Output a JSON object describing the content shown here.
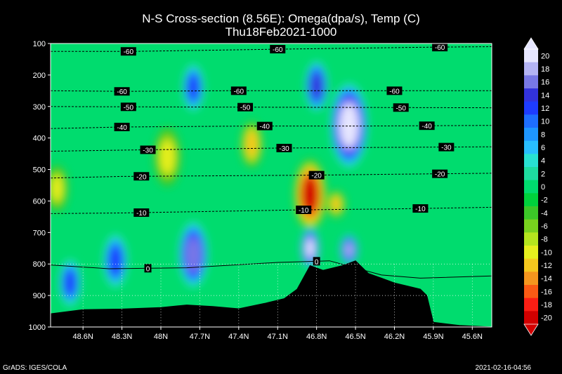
{
  "title": "N-S Cross-section (8.56E): Omega(dpa/s), Temp (C)",
  "subtitle": "Thu18Feb2021-1000",
  "footer_left": "GrADS: IGES/COLA",
  "footer_right": "2021-02-16-04:56",
  "chart_data": {
    "type": "heatmap",
    "title": "N-S Cross-section (8.56E): Omega(dpa/s), Temp (C)",
    "subtitle": "Thu18Feb2021-1000",
    "y_axis": {
      "scale": "pressure",
      "reversed": true,
      "ylim": [
        100,
        1000
      ],
      "ticks": [
        "100",
        "200",
        "300",
        "400",
        "500",
        "600",
        "700",
        "800",
        "900",
        "1000"
      ]
    },
    "x_axis": {
      "xlim": [
        48.85,
        45.45
      ],
      "ticks": [
        "48.6N",
        "48.3N",
        "48N",
        "47.7N",
        "47.4N",
        "47.1N",
        "46.8N",
        "46.5N",
        "46.2N",
        "45.9N",
        "45.6N"
      ]
    },
    "colorbar": {
      "levels": [
        "20",
        "18",
        "16",
        "14",
        "12",
        "10",
        "8",
        "6",
        "4",
        "2",
        "0",
        "-2",
        "-4",
        "-6",
        "-8",
        "-10",
        "-12",
        "-14",
        "-16",
        "-18",
        "-20"
      ],
      "colors": [
        "#e6e6ff",
        "#b4b4f5",
        "#7878e6",
        "#3232dc",
        "#1e3cff",
        "#1e6eff",
        "#1e96ff",
        "#28beff",
        "#28e1d2",
        "#1edca0",
        "#00dc6e",
        "#00d23c",
        "#3cc828",
        "#78d21e",
        "#b4e61e",
        "#e6ef1e",
        "#f5c81e",
        "#f5961e",
        "#fa5a14",
        "#fa1e14",
        "#d20000"
      ]
    },
    "omega_features": [
      {
        "lat": 46.55,
        "p_top": 240,
        "p_bottom": 480,
        "omega": 20
      },
      {
        "lat": 46.8,
        "p_top": 170,
        "p_bottom": 300,
        "omega": 14
      },
      {
        "lat": 47.75,
        "p_top": 180,
        "p_bottom": 300,
        "omega": 12
      },
      {
        "lat": 47.75,
        "p_top": 680,
        "p_bottom": 860,
        "omega": 16
      },
      {
        "lat": 48.35,
        "p_top": 720,
        "p_bottom": 860,
        "omega": 12
      },
      {
        "lat": 48.7,
        "p_top": 800,
        "p_bottom": 920,
        "omega": 12
      },
      {
        "lat": 46.85,
        "p_top": 480,
        "p_bottom": 680,
        "omega": -20
      },
      {
        "lat": 46.85,
        "p_top": 700,
        "p_bottom": 800,
        "omega": 20
      },
      {
        "lat": 46.55,
        "p_top": 720,
        "p_bottom": 790,
        "omega": 18
      },
      {
        "lat": 47.3,
        "p_top": 360,
        "p_bottom": 480,
        "omega": -12
      },
      {
        "lat": 47.95,
        "p_top": 380,
        "p_bottom": 540,
        "omega": -10
      },
      {
        "lat": 48.8,
        "p_top": 500,
        "p_bottom": 620,
        "omega": -10
      },
      {
        "lat": 46.65,
        "p_top": 580,
        "p_bottom": 640,
        "omega": -12
      }
    ],
    "temperature_isotherms": [
      {
        "label": "-60",
        "points": [
          [
            48.85,
            125
          ],
          [
            48.2,
            125
          ],
          [
            47.1,
            118
          ],
          [
            46.0,
            112
          ],
          [
            45.45,
            110
          ]
        ],
        "label_lats": [
          48.25,
          47.1,
          45.85
        ]
      },
      {
        "label": "-60",
        "points": [
          [
            48.85,
            250
          ],
          [
            48.3,
            252
          ],
          [
            47.5,
            250
          ],
          [
            46.6,
            250
          ],
          [
            45.45,
            250
          ]
        ],
        "label_lats": [
          48.3,
          47.4,
          46.2
        ]
      },
      {
        "label": "-50",
        "points": [
          [
            48.85,
            300
          ],
          [
            48.3,
            301
          ],
          [
            47.4,
            302
          ],
          [
            46.5,
            303
          ],
          [
            45.45,
            304
          ]
        ],
        "label_lats": [
          48.25,
          47.35,
          46.15
        ]
      },
      {
        "label": "-40",
        "points": [
          [
            48.85,
            370
          ],
          [
            48.3,
            365
          ],
          [
            47.3,
            362
          ],
          [
            46.4,
            362
          ],
          [
            45.45,
            360
          ]
        ],
        "label_lats": [
          48.3,
          47.2,
          45.95
        ]
      },
      {
        "label": "-30",
        "points": [
          [
            48.85,
            442
          ],
          [
            48.2,
            438
          ],
          [
            47.1,
            432
          ],
          [
            46.3,
            430
          ],
          [
            45.45,
            428
          ]
        ],
        "label_lats": [
          48.1,
          47.05,
          45.8
        ]
      },
      {
        "label": "-20",
        "points": [
          [
            48.85,
            527
          ],
          [
            48.3,
            522
          ],
          [
            46.8,
            518
          ],
          [
            46.2,
            515
          ],
          [
            45.45,
            512
          ]
        ],
        "label_lats": [
          48.15,
          46.8,
          45.85
        ]
      },
      {
        "label": "-10",
        "points": [
          [
            48.85,
            640
          ],
          [
            48.3,
            638
          ],
          [
            46.9,
            628
          ],
          [
            46.2,
            625
          ],
          [
            45.45,
            620
          ]
        ],
        "label_lats": [
          48.15,
          46.9,
          46.0
        ]
      },
      {
        "label": "0",
        "points": [
          [
            48.85,
            803
          ],
          [
            48.4,
            815
          ],
          [
            47.8,
            812
          ],
          [
            47.1,
            795
          ],
          [
            46.7,
            790
          ],
          [
            46.3,
            835
          ],
          [
            46.0,
            845
          ],
          [
            45.45,
            838
          ]
        ],
        "label_lats": [
          48.1,
          46.8
        ]
      }
    ],
    "terrain_surface_pressure": [
      [
        48.85,
        958
      ],
      [
        48.6,
        945
      ],
      [
        48.3,
        943
      ],
      [
        48.0,
        938
      ],
      [
        47.8,
        930
      ],
      [
        47.6,
        935
      ],
      [
        47.4,
        942
      ],
      [
        47.2,
        925
      ],
      [
        47.05,
        910
      ],
      [
        46.95,
        880
      ],
      [
        46.85,
        805
      ],
      [
        46.75,
        820
      ],
      [
        46.6,
        805
      ],
      [
        46.5,
        790
      ],
      [
        46.4,
        830
      ],
      [
        46.3,
        845
      ],
      [
        46.2,
        860
      ],
      [
        46.1,
        870
      ],
      [
        46.0,
        880
      ],
      [
        45.95,
        900
      ],
      [
        45.9,
        985
      ],
      [
        45.7,
        995
      ],
      [
        45.45,
        1000
      ]
    ]
  }
}
